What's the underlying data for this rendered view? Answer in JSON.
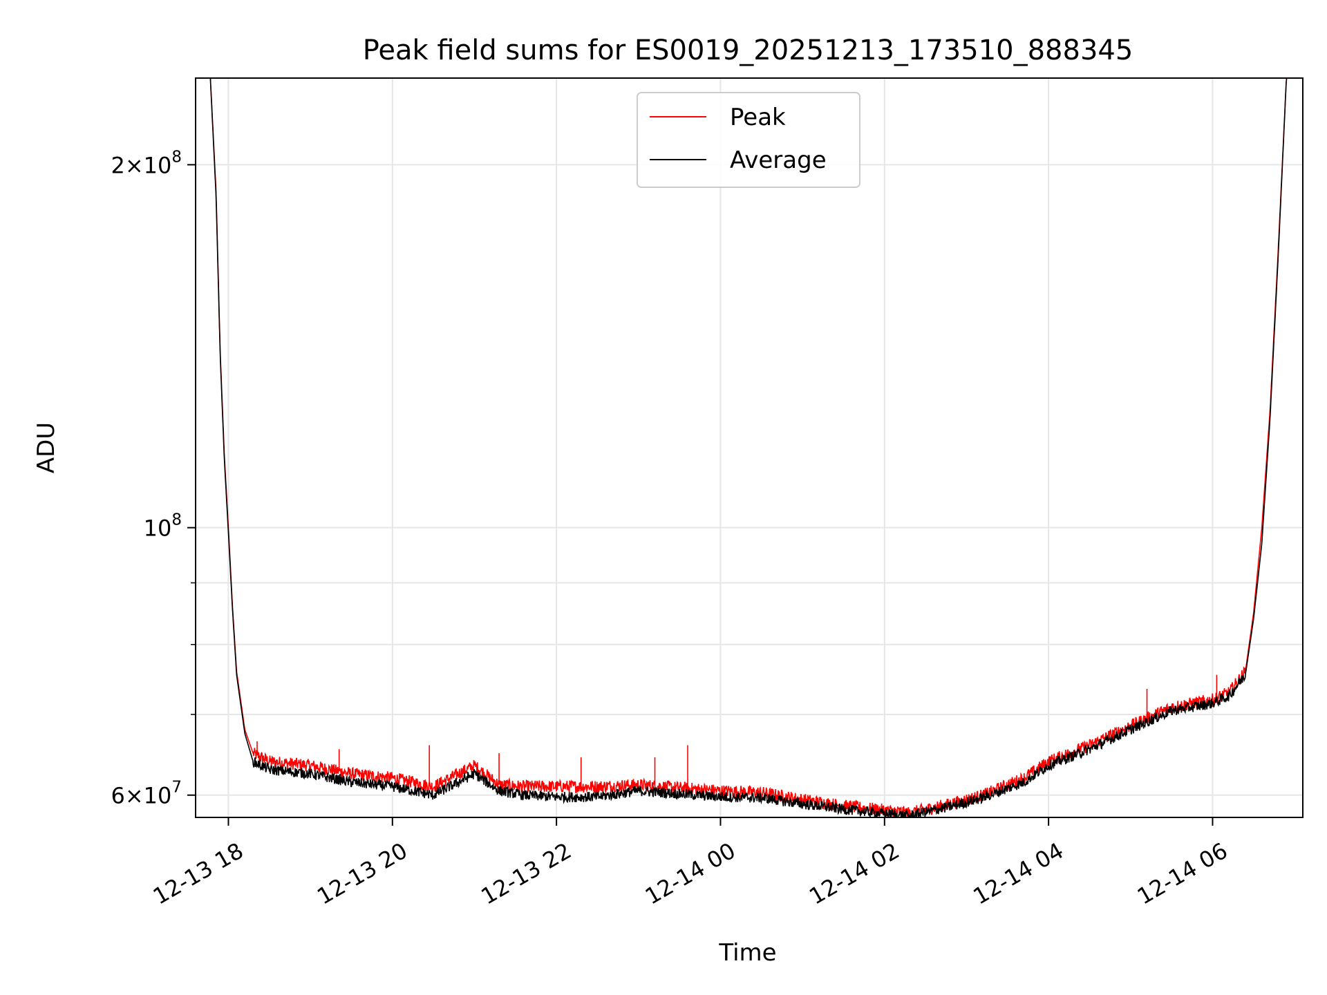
{
  "chart_data": {
    "type": "line",
    "title": "Peak field sums for ES0019_20251213_173510_888345",
    "xlabel": "Time",
    "ylabel": "ADU",
    "yscale": "log",
    "ylim": [
      57500000,
      236000000
    ],
    "xlim_hours": [
      -0.4,
      13.1
    ],
    "x_unit": "hours since 12-13 18:00",
    "grid": true,
    "legend_position": "top-center",
    "x_ticks": [
      {
        "value": 0,
        "label": "12-13 18"
      },
      {
        "value": 2,
        "label": "12-13 20"
      },
      {
        "value": 4,
        "label": "12-13 22"
      },
      {
        "value": 6,
        "label": "12-14 00"
      },
      {
        "value": 8,
        "label": "12-14 02"
      },
      {
        "value": 10,
        "label": "12-14 04"
      },
      {
        "value": 12,
        "label": "12-14 06"
      }
    ],
    "y_major_ticks": [
      {
        "value": 60000000,
        "mantissa": "6",
        "base": "10",
        "exponent": "7"
      },
      {
        "value": 100000000,
        "mantissa": "",
        "base": "10",
        "exponent": "8"
      },
      {
        "value": 200000000,
        "mantissa": "2",
        "base": "10",
        "exponent": "8"
      }
    ],
    "y_minor_ticks": [
      70000000,
      80000000,
      90000000
    ],
    "series": [
      {
        "name": "Peak",
        "color": "#ff0000",
        "x": [
          -0.4,
          -0.22,
          -0.15,
          -0.1,
          -0.05,
          0.0,
          0.05,
          0.1,
          0.2,
          0.3,
          0.5,
          1.0,
          1.5,
          2.0,
          2.5,
          3.0,
          3.3,
          3.6,
          4.0,
          4.5,
          5.0,
          6.0,
          6.5,
          7.0,
          7.5,
          8.0,
          8.3,
          8.8,
          9.2,
          9.7,
          10.0,
          10.5,
          11.0,
          11.5,
          12.0,
          12.2,
          12.4,
          12.5,
          12.6,
          12.7,
          12.8,
          12.9,
          13.1
        ],
        "y": [
          236000000,
          236000000,
          190000000,
          140000000,
          115000000,
          100000000,
          86000000,
          76000000,
          68000000,
          65000000,
          64000000,
          63500000,
          62500000,
          62000000,
          61000000,
          63500000,
          61200000,
          61000000,
          61000000,
          61000000,
          61200000,
          60500000,
          60300000,
          59500000,
          58800000,
          58300000,
          58000000,
          59000000,
          60000000,
          62000000,
          64000000,
          66000000,
          68500000,
          71000000,
          72000000,
          73000000,
          76000000,
          85000000,
          100000000,
          125000000,
          170000000,
          236000000,
          236000000
        ],
        "spikes": [
          {
            "x": 0.35,
            "y": 66500000
          },
          {
            "x": 1.35,
            "y": 65500000
          },
          {
            "x": 2.45,
            "y": 66000000
          },
          {
            "x": 3.3,
            "y": 65000000
          },
          {
            "x": 4.3,
            "y": 64500000
          },
          {
            "x": 5.2,
            "y": 64500000
          },
          {
            "x": 5.6,
            "y": 66000000
          },
          {
            "x": 11.2,
            "y": 73500000
          },
          {
            "x": 12.05,
            "y": 75500000
          }
        ]
      },
      {
        "name": "Average",
        "color": "#000000",
        "x": [
          -0.4,
          -0.22,
          -0.15,
          -0.1,
          -0.05,
          0.0,
          0.05,
          0.1,
          0.2,
          0.3,
          0.5,
          1.0,
          1.5,
          2.0,
          2.5,
          3.0,
          3.3,
          3.6,
          4.0,
          4.5,
          5.0,
          6.0,
          6.5,
          7.0,
          7.5,
          8.0,
          8.3,
          8.8,
          9.2,
          9.7,
          10.0,
          10.5,
          11.0,
          11.5,
          12.0,
          12.2,
          12.4,
          12.5,
          12.6,
          12.7,
          12.8,
          12.9,
          13.1
        ],
        "y": [
          236000000,
          236000000,
          188000000,
          139000000,
          114000000,
          99000000,
          85500000,
          75500000,
          67500000,
          64000000,
          63000000,
          62500000,
          61500000,
          61000000,
          60000000,
          62500000,
          60500000,
          60000000,
          59800000,
          59800000,
          60500000,
          59800000,
          59700000,
          59000000,
          58400000,
          57900000,
          57700000,
          58700000,
          59700000,
          61500000,
          63500000,
          65500000,
          68000000,
          70500000,
          71500000,
          72500000,
          75500000,
          84000000,
          97000000,
          123000000,
          168000000,
          236000000,
          236000000
        ]
      }
    ]
  }
}
